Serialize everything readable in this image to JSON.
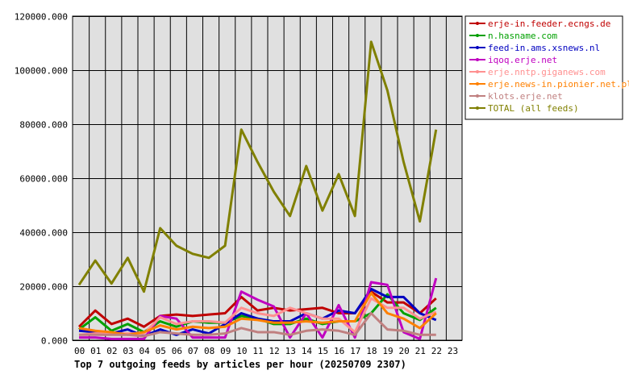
{
  "chart_data": {
    "type": "line",
    "title": "Top 7 outgoing feeds by articles per hour (20250709 2307)",
    "xlabel": "",
    "ylabel": "",
    "categories": [
      "00",
      "01",
      "02",
      "03",
      "04",
      "05",
      "06",
      "07",
      "08",
      "09",
      "10",
      "11",
      "12",
      "13",
      "14",
      "15",
      "16",
      "17",
      "18",
      "19",
      "20",
      "21",
      "22",
      "23"
    ],
    "y_ticks": [
      "0.000",
      "20000.000",
      "40000.000",
      "60000.000",
      "80000.000",
      "100000.000",
      "120000.000"
    ],
    "ylim": [
      0,
      120000
    ],
    "grid": true,
    "legend_position": "right",
    "plot_background": "#e0e0e0",
    "series": [
      {
        "name": "erje-in.feeder.ecngs.de",
        "color": "#c00000",
        "values": [
          5000,
          11000,
          6000,
          8000,
          5000,
          9000,
          9500,
          9000,
          9500,
          10000,
          16000,
          11000,
          12000,
          11000,
          11500,
          12000,
          10000,
          10000,
          18000,
          14000,
          14000,
          10000,
          15500,
          null
        ]
      },
      {
        "name": "n.hasname.com",
        "color": "#00a000",
        "values": [
          4000,
          8500,
          3500,
          6000,
          3000,
          7000,
          5000,
          7000,
          6500,
          6500,
          9000,
          8000,
          6000,
          6000,
          8000,
          6000,
          7000,
          7000,
          10000,
          17000,
          10000,
          7500,
          12000,
          null
        ]
      },
      {
        "name": "feed-in.ams.xsnews.nl",
        "color": "#0000c0",
        "values": [
          3500,
          3000,
          2500,
          4000,
          1500,
          4000,
          2000,
          4000,
          2500,
          6000,
          10000,
          8000,
          7000,
          7000,
          10000,
          8000,
          11000,
          10000,
          19000,
          16000,
          16000,
          10000,
          7500,
          null
        ]
      },
      {
        "name": "iqoq.erje.net",
        "color": "#c000c0",
        "values": [
          1000,
          1000,
          500,
          500,
          500,
          9000,
          8000,
          1000,
          1000,
          1000,
          18000,
          15000,
          12500,
          1000,
          10000,
          1000,
          13000,
          1000,
          21500,
          20500,
          3000,
          500,
          23000,
          null
        ]
      },
      {
        "name": "erje.nntp.giganews.com",
        "color": "#ff9090",
        "values": [
          2000,
          2500,
          2500,
          2500,
          2500,
          8500,
          6000,
          7000,
          7000,
          6500,
          12000,
          10000,
          9000,
          12000,
          10000,
          8000,
          8000,
          3000,
          15500,
          12000,
          12000,
          8000,
          10500,
          null
        ]
      },
      {
        "name": "erje.news-in.pionier.net.pl",
        "color": "#ff8000",
        "values": [
          4500,
          3500,
          3000,
          2000,
          3000,
          5500,
          4000,
          5000,
          4500,
          5000,
          8000,
          7500,
          6500,
          6500,
          7000,
          6500,
          7000,
          7000,
          17500,
          10000,
          8000,
          4500,
          10000,
          null
        ]
      },
      {
        "name": "klots.erje.net",
        "color": "#c08080",
        "values": [
          2000,
          2000,
          2000,
          2000,
          1500,
          3000,
          2500,
          2000,
          2000,
          2500,
          4500,
          3000,
          3000,
          2000,
          3500,
          4000,
          3500,
          2000,
          10000,
          4000,
          3500,
          2000,
          2000,
          null
        ]
      },
      {
        "name": "TOTAL (all feeds)",
        "color": "#808000",
        "values": [
          20500,
          29500,
          21000,
          30500,
          18000,
          41500,
          35000,
          32000,
          30500,
          35000,
          78000,
          66000,
          55000,
          46000,
          64500,
          48000,
          61500,
          46000,
          110500,
          92500,
          66000,
          44000,
          78000,
          null
        ]
      }
    ]
  }
}
